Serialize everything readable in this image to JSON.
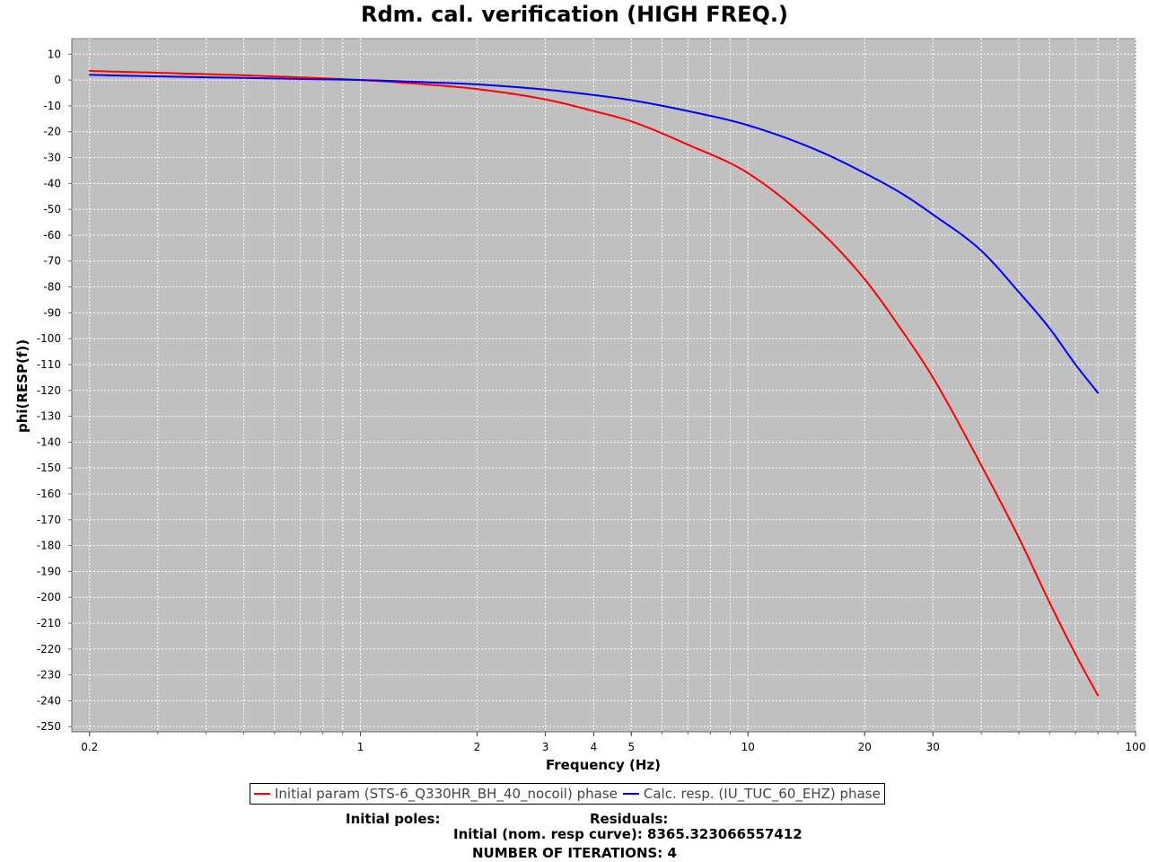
{
  "chart_data": {
    "type": "line",
    "title": "Rdm. cal. verification (HIGH FREQ.)",
    "xlabel": "Frequency (Hz)",
    "ylabel": "phi(RESP(f))",
    "xscale": "log",
    "xlim": [
      0.18,
      100
    ],
    "ylim": [
      -252,
      16
    ],
    "x_ticks": [
      0.2,
      1,
      2,
      3,
      4,
      5,
      10,
      20,
      30,
      100
    ],
    "x_tick_labels": [
      "0.2",
      "1",
      "2",
      "3",
      "4",
      "5",
      "10",
      "20",
      "30",
      "100"
    ],
    "y_ticks": [
      10,
      0,
      -10,
      -20,
      -30,
      -40,
      -50,
      -60,
      -70,
      -80,
      -90,
      -100,
      -110,
      -120,
      -130,
      -140,
      -150,
      -160,
      -170,
      -180,
      -190,
      -200,
      -210,
      -220,
      -230,
      -240,
      -250
    ],
    "y_tick_labels": [
      "10",
      "0",
      "-10",
      "-20",
      "-30",
      "-40",
      "-50",
      "-60",
      "-70",
      "-80",
      "-90",
      "-100",
      "-110",
      "-120",
      "-130",
      "-140",
      "-150",
      "-160",
      "-170",
      "-180",
      "-190",
      "-200",
      "-210",
      "-220",
      "-230",
      "-240",
      "-250"
    ],
    "grid": true,
    "background": "#c0c0c0",
    "legend_position": "bottom",
    "series": [
      {
        "name": "Initial param (STS-6_Q330HR_BH_40_nocoil) phase",
        "color": "#ff0000",
        "x": [
          0.2,
          0.3,
          0.5,
          0.7,
          1,
          1.5,
          2,
          3,
          4,
          5,
          7,
          10,
          15,
          20,
          25,
          30,
          40,
          50,
          60,
          70,
          80
        ],
        "y": [
          3.5,
          2.8,
          1.8,
          1.0,
          0,
          -1.8,
          -3.5,
          -7.5,
          -12,
          -16,
          -25,
          -36,
          -57,
          -77,
          -97,
          -115,
          -149,
          -177,
          -202,
          -222,
          -238
        ]
      },
      {
        "name": "Calc. resp. (IU_TUC_60_EHZ) phase",
        "color": "#0000ff",
        "x": [
          0.2,
          0.3,
          0.5,
          0.7,
          1,
          1.5,
          2,
          3,
          4,
          5,
          7,
          10,
          15,
          20,
          25,
          30,
          40,
          50,
          60,
          70,
          80
        ],
        "y": [
          2.0,
          1.4,
          0.8,
          0.4,
          0,
          -0.9,
          -1.7,
          -3.7,
          -5.8,
          -7.8,
          -12,
          -17.5,
          -27,
          -36,
          -44,
          -52,
          -66,
          -82,
          -96,
          -110,
          -121
        ]
      }
    ]
  },
  "info": {
    "initial_poles_label": "Initial poles:",
    "residuals_label": "Residuals:",
    "initial_residual": "Initial (nom. resp curve): 8365.323066557412",
    "iterations": "NUMBER OF ITERATIONS: 4"
  }
}
